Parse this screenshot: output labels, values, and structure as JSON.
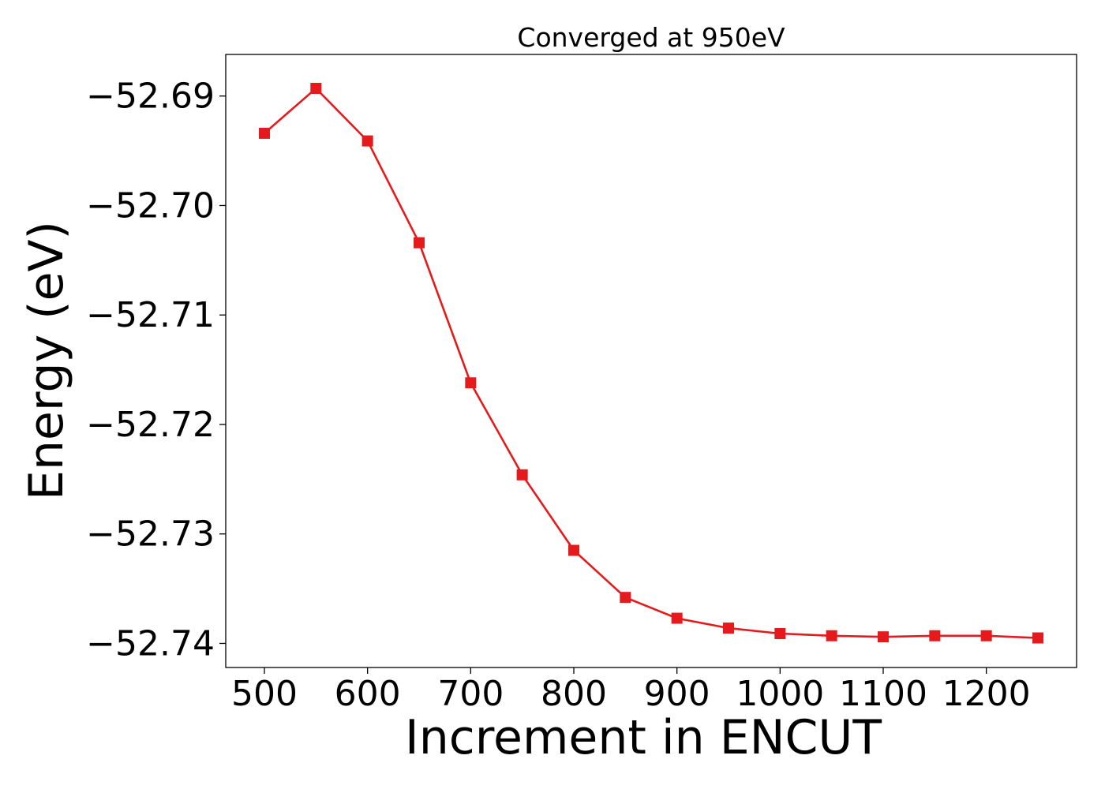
{
  "chart_data": {
    "type": "line",
    "title": "Converged at 950eV",
    "xlabel": "Increment in ENCUT",
    "ylabel": "Energy (eV)",
    "xlim": [
      462.5,
      1287.5
    ],
    "ylim": [
      -52.7422,
      -52.6862
    ],
    "xticks": [
      500,
      600,
      700,
      800,
      900,
      1000,
      1100,
      1200
    ],
    "yticks": [
      -52.69,
      -52.7,
      -52.71,
      -52.72,
      -52.73,
      -52.74
    ],
    "ytick_labels": [
      "−52.69",
      "−52.70",
      "−52.71",
      "−52.72",
      "−52.73",
      "−52.74"
    ],
    "grid": false,
    "line_color": "#e41a1c",
    "marker": "square",
    "series": [
      {
        "x": [
          500,
          550,
          600,
          650,
          700,
          750,
          800,
          850,
          900,
          950,
          1000,
          1050,
          1100,
          1150,
          1200,
          1250
        ],
        "values": [
          -52.6934,
          -52.6893,
          -52.6941,
          -52.7034,
          -52.7162,
          -52.7246,
          -52.7315,
          -52.7358,
          -52.7377,
          -52.7386,
          -52.7391,
          -52.7393,
          -52.7394,
          -52.7393,
          -52.7393,
          -52.7395
        ]
      }
    ]
  }
}
